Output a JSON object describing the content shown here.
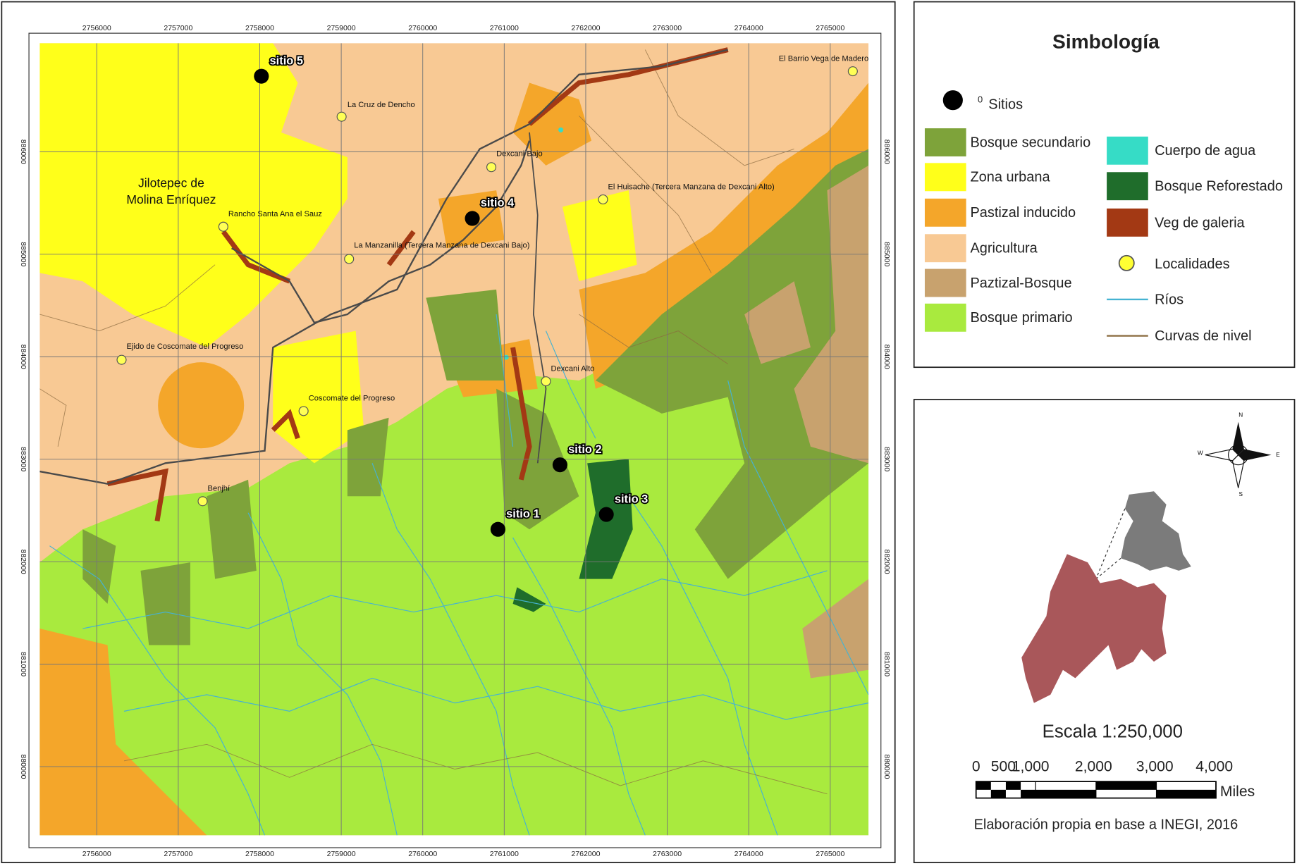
{
  "map": {
    "xticks": [
      2756000,
      2757000,
      2758000,
      2759000,
      2760000,
      2761000,
      2762000,
      2763000,
      2764000,
      2765000
    ],
    "yticks": [
      886000,
      885000,
      884000,
      883000,
      882000,
      881000,
      880000
    ],
    "xlim": [
      2755300,
      2765470
    ],
    "ylim": [
      879330,
      887060
    ],
    "town_label": [
      "Jilotepec de",
      "Molina Enríquez"
    ],
    "sites": [
      "sitio 5",
      "sitio 4",
      "sitio 2",
      "sitio 3",
      "sitio 1"
    ],
    "localities": [
      "La Cruz de Dencho",
      "Rancho Santa Ana el Sauz",
      "Dexcani Bajo",
      "El Huisache (Tercera Manzana de Dexcani Alto)",
      "La Manzanilla (Tercera Manzana de Dexcani Bajo)",
      "Ejido de Coscomate del Progreso",
      "Dexcani Alto",
      "Coscomate del Progreso",
      "Benjhí",
      "El Barrio Vega de Madero"
    ]
  },
  "legend": {
    "title": "Simbología",
    "sites_marker": "0",
    "sites_label": "Sitios",
    "cover": [
      {
        "label": "Bosque  secundario",
        "color": "#7ea33a"
      },
      {
        "label": "Zona urbana",
        "color": "#ffff1a"
      },
      {
        "label": "Pastizal inducido",
        "color": "#f4a62a"
      },
      {
        "label": "Agricultura",
        "color": "#f8c994"
      },
      {
        "label": "Paztizal-Bosque",
        "color": "#c8a26e"
      },
      {
        "label": "Bosque primario",
        "color": "#a9ea3e"
      },
      {
        "label": "Cuerpo de agua",
        "color": "#36dcc6"
      },
      {
        "label": "Bosque Reforestado",
        "color": "#1f6d2b"
      },
      {
        "label": "Veg de galeria",
        "color": "#a33914"
      }
    ],
    "localities_label": "Localidades",
    "rivers_label": "Ríos",
    "rivers_color": "#45b3d2",
    "contours_label": "Curvas de nivel",
    "contours_color": "#8a6a3e"
  },
  "inset": {
    "compass": [
      "N",
      "E",
      "S",
      "W"
    ],
    "scale_title": "Escala 1:250,000",
    "scale_labels": [
      "0",
      "500",
      "1,000",
      "2,000",
      "3,000",
      "4,000"
    ],
    "scale_unit": "Miles",
    "source": "Elaboración propia en base a INEGI, 2016"
  }
}
